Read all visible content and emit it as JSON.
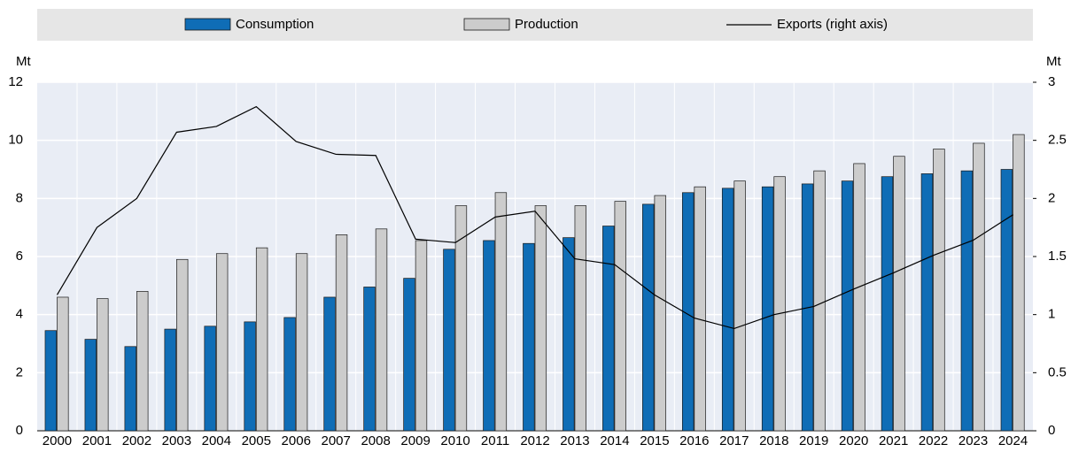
{
  "chart_data": {
    "type": "bar_line",
    "y_label": "Mt",
    "y2_label": "Mt",
    "categories": [
      "2000",
      "2001",
      "2002",
      "2003",
      "2004",
      "2005",
      "2006",
      "2007",
      "2008",
      "2009",
      "2010",
      "2011",
      "2012",
      "2013",
      "2014",
      "2015",
      "2016",
      "2017",
      "2018",
      "2019",
      "2020",
      "2021",
      "2022",
      "2023",
      "2024"
    ],
    "series": [
      {
        "name": "Consumption",
        "type": "bar",
        "color": "#0f6db6",
        "values": [
          3.45,
          3.15,
          2.9,
          3.5,
          3.6,
          3.75,
          3.9,
          4.6,
          4.95,
          5.25,
          6.25,
          6.55,
          6.45,
          6.65,
          7.05,
          7.8,
          8.2,
          8.35,
          8.4,
          8.5,
          8.6,
          8.75,
          8.85,
          8.95,
          9.0
        ]
      },
      {
        "name": "Production",
        "type": "bar",
        "color": "#cccccc",
        "values": [
          4.6,
          4.55,
          4.8,
          5.9,
          6.1,
          6.3,
          6.1,
          6.75,
          6.95,
          6.55,
          7.75,
          8.2,
          7.75,
          7.75,
          7.9,
          8.1,
          8.4,
          8.6,
          8.75,
          8.95,
          9.2,
          9.45,
          9.7,
          9.9,
          10.2
        ]
      },
      {
        "name": "Exports (right axis)",
        "type": "line",
        "axis": "y2",
        "color": "#000000",
        "values": [
          1.17,
          1.75,
          2.0,
          2.57,
          2.62,
          2.79,
          2.49,
          2.38,
          2.37,
          1.65,
          1.62,
          1.84,
          1.89,
          1.48,
          1.43,
          1.17,
          0.97,
          0.88,
          1.0,
          1.07,
          1.22,
          1.36,
          1.51,
          1.64,
          1.86
        ]
      }
    ],
    "ylim": [
      0,
      12
    ],
    "yticks": [
      0,
      2,
      4,
      6,
      8,
      10,
      12
    ],
    "y2lim": [
      0,
      3
    ],
    "y2ticks": [
      0,
      0.5,
      1,
      1.5,
      2,
      2.5,
      3
    ],
    "grid": true,
    "legend": "top"
  }
}
